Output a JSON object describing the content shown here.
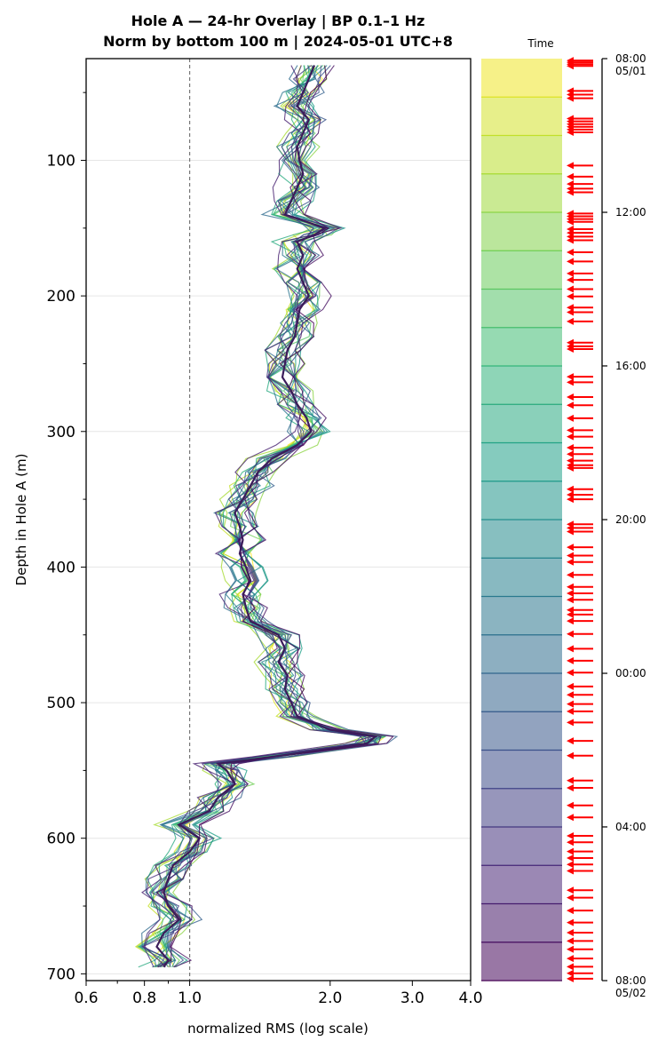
{
  "chart_data": {
    "type": "line",
    "title_line1": "Hole A — 24-hr Overlay  |  BP 0.1–1 Hz",
    "title_line2": "Norm by bottom 100 m  |  2024-05-01 UTC+8",
    "xlabel": "normalized RMS  (log scale)",
    "ylabel": "Depth in Hole A (m)",
    "xscale": "log",
    "xlim": [
      0.6,
      4.0
    ],
    "ylim": [
      705,
      25
    ],
    "y_inverted": true,
    "xticks": [
      {
        "value": 0.6,
        "label": "0.6"
      },
      {
        "value": 0.8,
        "label": "0.8"
      },
      {
        "value": 1.0,
        "label": "1.0"
      },
      {
        "value": 2.0,
        "label": "2.0"
      },
      {
        "value": 3.0,
        "label": "3.0"
      },
      {
        "value": 4.0,
        "label": "4.0"
      }
    ],
    "yticks": [
      {
        "value": 100,
        "label": "100"
      },
      {
        "value": 200,
        "label": "200"
      },
      {
        "value": 300,
        "label": "300"
      },
      {
        "value": 400,
        "label": "400"
      },
      {
        "value": 500,
        "label": "500"
      },
      {
        "value": 600,
        "label": "600"
      },
      {
        "value": 700,
        "label": "700"
      }
    ],
    "reference_line_x": 1.0,
    "grid": "horizontal",
    "colormap": "viridis",
    "profile": {
      "depth": [
        30,
        40,
        50,
        60,
        70,
        80,
        90,
        100,
        110,
        120,
        130,
        140,
        150,
        155,
        160,
        170,
        180,
        190,
        200,
        210,
        220,
        230,
        240,
        250,
        260,
        270,
        280,
        290,
        300,
        310,
        320,
        330,
        340,
        350,
        360,
        370,
        380,
        390,
        400,
        410,
        420,
        430,
        440,
        450,
        460,
        470,
        480,
        490,
        500,
        510,
        520,
        525,
        530,
        540,
        545,
        550,
        560,
        570,
        580,
        590,
        600,
        610,
        620,
        630,
        640,
        650,
        660,
        670,
        680,
        690,
        695
      ],
      "rms": [
        1.85,
        1.8,
        1.75,
        1.7,
        1.8,
        1.75,
        1.7,
        1.72,
        1.75,
        1.7,
        1.65,
        1.6,
        1.95,
        1.85,
        1.7,
        1.75,
        1.7,
        1.75,
        1.8,
        1.72,
        1.7,
        1.68,
        1.62,
        1.6,
        1.58,
        1.65,
        1.7,
        1.78,
        1.82,
        1.7,
        1.5,
        1.4,
        1.35,
        1.3,
        1.25,
        1.28,
        1.3,
        1.28,
        1.32,
        1.35,
        1.3,
        1.32,
        1.35,
        1.55,
        1.6,
        1.55,
        1.62,
        1.6,
        1.65,
        1.7,
        2.0,
        2.5,
        2.4,
        1.5,
        1.15,
        1.2,
        1.25,
        1.15,
        1.1,
        0.95,
        1.05,
        1.0,
        0.92,
        0.9,
        0.88,
        0.9,
        0.95,
        0.88,
        0.85,
        0.9,
        0.88
      ]
    },
    "series_count": 24,
    "colorbar": {
      "title": "Time",
      "ticks": [
        {
          "time": "08:00",
          "date": "05/01",
          "frac": 0.0
        },
        {
          "time": "12:00",
          "date": "",
          "frac": 0.1667
        },
        {
          "time": "16:00",
          "date": "",
          "frac": 0.3333
        },
        {
          "time": "20:00",
          "date": "",
          "frac": 0.5
        },
        {
          "time": "00:00",
          "date": "",
          "frac": 0.6667
        },
        {
          "time": "04:00",
          "date": "",
          "frac": 0.8333
        },
        {
          "time": "08:00",
          "date": "05/02",
          "frac": 1.0
        }
      ],
      "bands": 24
    },
    "event_arrows_frac": [
      0.002,
      0.004,
      0.006,
      0.008,
      0.035,
      0.039,
      0.043,
      0.065,
      0.068,
      0.071,
      0.074,
      0.077,
      0.08,
      0.116,
      0.128,
      0.136,
      0.141,
      0.145,
      0.168,
      0.171,
      0.174,
      0.177,
      0.185,
      0.189,
      0.193,
      0.197,
      0.21,
      0.22,
      0.233,
      0.24,
      0.25,
      0.258,
      0.27,
      0.275,
      0.285,
      0.308,
      0.312,
      0.315,
      0.345,
      0.351,
      0.367,
      0.376,
      0.39,
      0.403,
      0.41,
      0.422,
      0.429,
      0.436,
      0.441,
      0.444,
      0.467,
      0.473,
      0.478,
      0.505,
      0.509,
      0.513,
      0.53,
      0.539,
      0.546,
      0.56,
      0.573,
      0.58,
      0.587,
      0.598,
      0.603,
      0.61,
      0.624,
      0.64,
      0.653,
      0.666,
      0.681,
      0.69,
      0.7,
      0.708,
      0.72,
      0.74,
      0.756,
      0.783,
      0.791,
      0.81,
      0.823,
      0.843,
      0.85,
      0.86,
      0.867,
      0.874,
      0.881,
      0.902,
      0.91,
      0.924,
      0.937,
      0.948,
      0.957,
      0.966,
      0.976,
      0.985,
      0.992,
      0.998
    ]
  }
}
